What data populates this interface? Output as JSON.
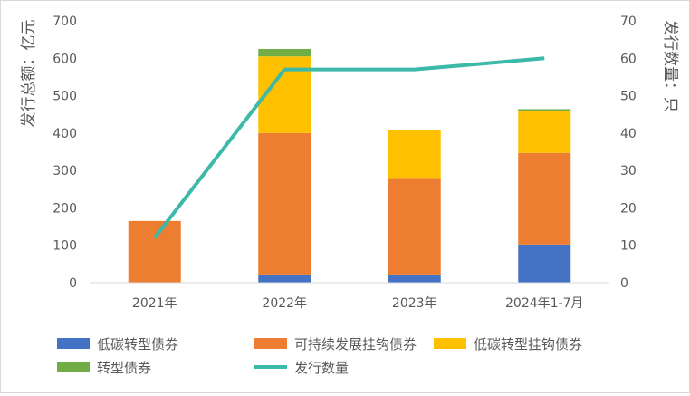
{
  "chart_data": {
    "type": "bar",
    "stacked": true,
    "categories": [
      "2021年",
      "2022年",
      "2023年",
      "2024年1-7月"
    ],
    "ylabel": "发行总额：亿元",
    "y2label": "发行数量：只",
    "ylim": [
      0,
      700
    ],
    "y2lim": [
      0,
      70
    ],
    "yticks": [
      "0",
      "100",
      "200",
      "300",
      "400",
      "500",
      "600",
      "700"
    ],
    "y2ticks": [
      "0",
      "10",
      "20",
      "30",
      "40",
      "50",
      "60",
      "70"
    ],
    "grid": false,
    "legend_position": "bottom",
    "series": [
      {
        "name": "低碳转型债券",
        "type": "bar",
        "axis": "left",
        "color": "#4472c4",
        "values": [
          0,
          22,
          22,
          102
        ]
      },
      {
        "name": "可持续发展挂钩债券",
        "type": "bar",
        "axis": "left",
        "color": "#ed7d31",
        "values": [
          165,
          378,
          258,
          245
        ]
      },
      {
        "name": "低碳转型挂钩债券",
        "type": "bar",
        "axis": "left",
        "color": "#ffc000",
        "values": [
          0,
          205,
          127,
          112
        ]
      },
      {
        "name": "转型债券",
        "type": "bar",
        "axis": "left",
        "color": "#70ad47",
        "values": [
          0,
          20,
          0,
          5
        ]
      },
      {
        "name": "发行数量",
        "type": "line",
        "axis": "right",
        "color": "#3cb9a9",
        "values": [
          12,
          57,
          57,
          60
        ]
      }
    ]
  }
}
